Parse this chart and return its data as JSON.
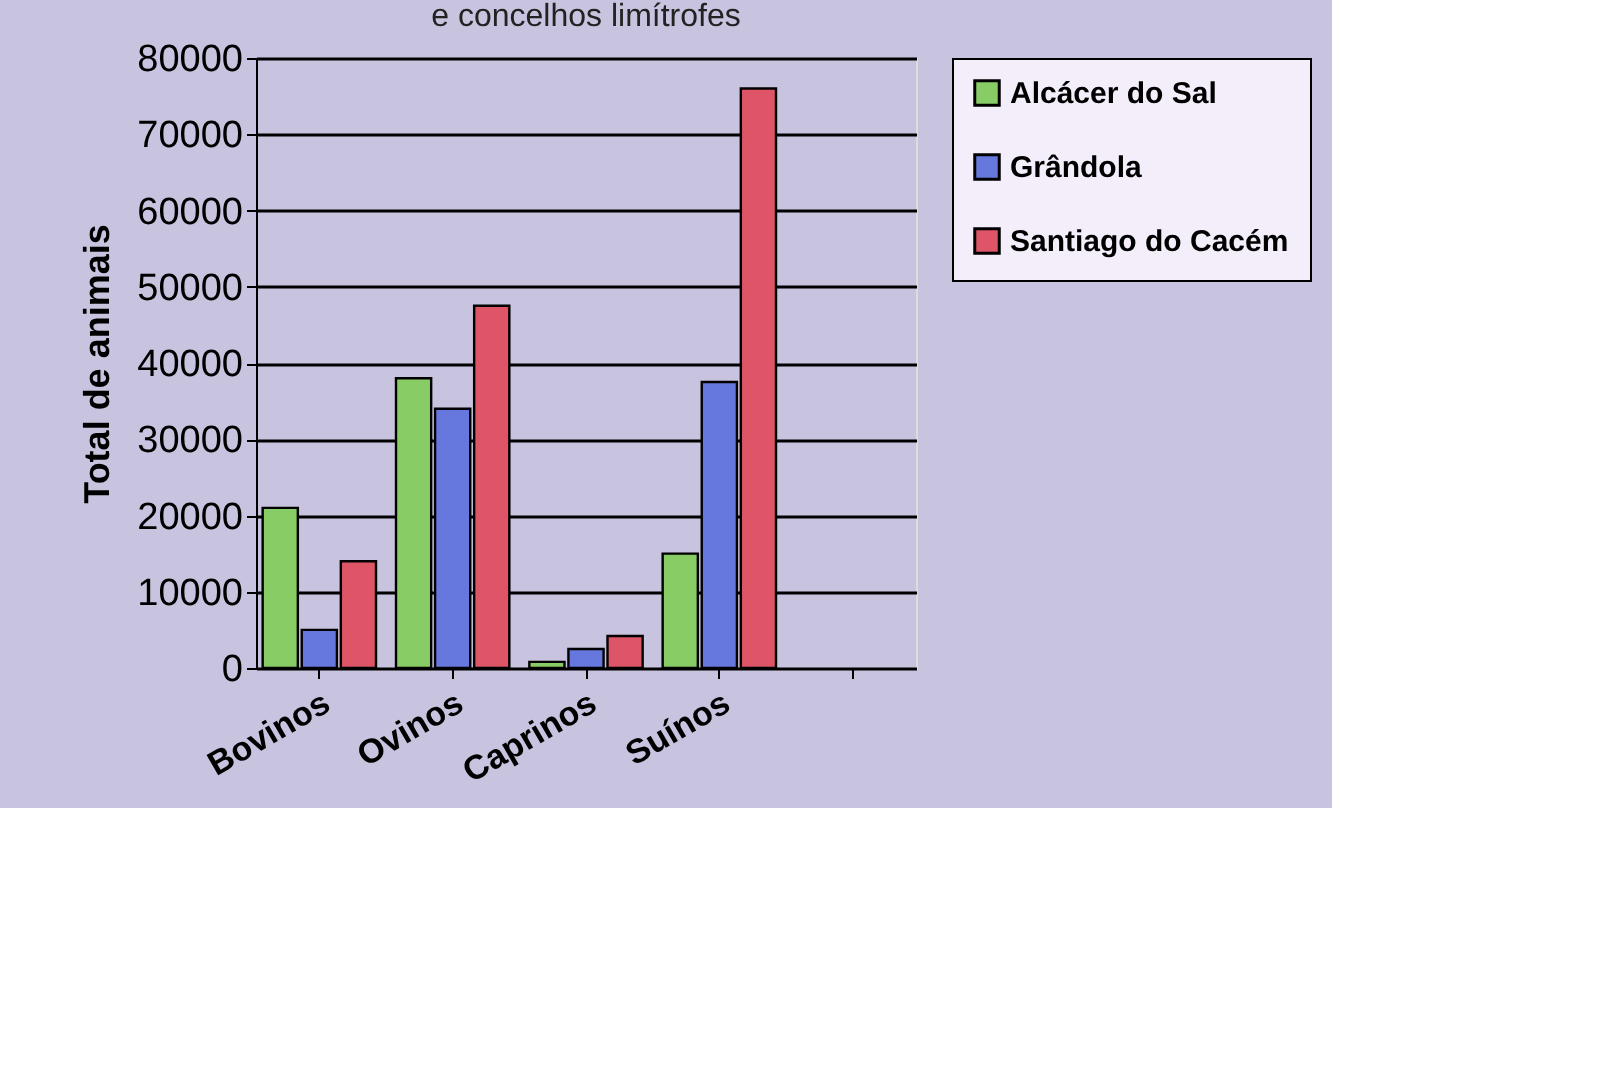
{
  "chart_data": {
    "type": "bar",
    "title": "e concelhos limítrofes",
    "ylabel": "Total de animais",
    "categories": [
      "Bovinos",
      "Ovinos",
      "Caprinos",
      "Suínos",
      null
    ],
    "series": [
      {
        "name": "Alcácer do Sal",
        "color": "#88cc66",
        "values": [
          21000,
          38000,
          800,
          15000,
          null
        ]
      },
      {
        "name": "Grândola",
        "color": "#6677dd",
        "values": [
          5000,
          34000,
          2500,
          37500,
          null
        ]
      },
      {
        "name": "Santiago do Cacém",
        "color": "#dd5566",
        "values": [
          14000,
          47500,
          4200,
          76000,
          null
        ]
      }
    ],
    "ylim": [
      0,
      80000
    ],
    "yticks": [
      0,
      10000,
      20000,
      30000,
      40000,
      50000,
      60000,
      70000,
      80000
    ],
    "grid": "y",
    "legend": "right"
  }
}
